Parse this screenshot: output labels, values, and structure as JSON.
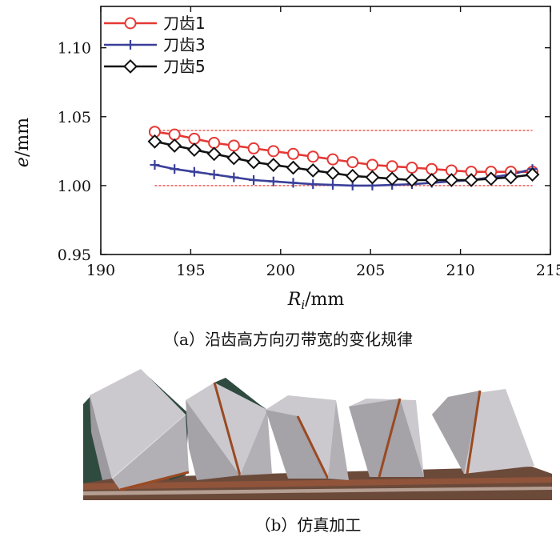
{
  "chart_data": {
    "type": "line",
    "title": "",
    "xlabel_main": "R",
    "xlabel_sub": "i",
    "xlabel_unit": "/mm",
    "ylabel_main": "e",
    "ylabel_unit": "/mm",
    "xlim": [
      190,
      215
    ],
    "ylim": [
      0.95,
      1.13
    ],
    "xticks": [
      "190",
      "195",
      "200",
      "205",
      "210",
      "215"
    ],
    "yticks": [
      "0.95",
      "1.00",
      "1.05",
      "1.10"
    ],
    "xtick_values": [
      190,
      195,
      200,
      205,
      210,
      215
    ],
    "ytick_values": [
      0.95,
      1.0,
      1.05,
      1.1
    ],
    "legend_position": "top-left",
    "reference_lines": [
      {
        "y": 1.04,
        "x": [
          193,
          214
        ],
        "color": "#e53935"
      },
      {
        "y": 1.0,
        "x": [
          193,
          214
        ],
        "color": "#e53935"
      }
    ],
    "series": [
      {
        "name": "刀齿1",
        "color": "#e53935",
        "marker": "circle",
        "x": [
          193.0,
          194.1,
          195.2,
          196.3,
          197.4,
          198.5,
          199.6,
          200.7,
          201.8,
          202.9,
          204.0,
          205.1,
          206.2,
          207.3,
          208.4,
          209.5,
          210.6,
          211.7,
          212.8,
          214.0
        ],
        "y": [
          1.039,
          1.037,
          1.034,
          1.031,
          1.029,
          1.027,
          1.025,
          1.023,
          1.021,
          1.019,
          1.017,
          1.015,
          1.014,
          1.013,
          1.012,
          1.011,
          1.01,
          1.01,
          1.01,
          1.01
        ]
      },
      {
        "name": "刀齿3",
        "color": "#3a3f9a",
        "marker": "plus",
        "x": [
          193.0,
          194.1,
          195.2,
          196.3,
          197.4,
          198.5,
          199.6,
          200.7,
          201.8,
          202.9,
          204.0,
          205.1,
          206.2,
          207.3,
          208.4,
          209.5,
          210.6,
          211.7,
          212.8,
          214.0
        ],
        "y": [
          1.015,
          1.012,
          1.01,
          1.008,
          1.006,
          1.004,
          1.003,
          1.002,
          1.001,
          1.0005,
          1.0,
          1.0,
          1.0005,
          1.001,
          1.002,
          1.003,
          1.004,
          1.006,
          1.008,
          1.012
        ]
      },
      {
        "name": "刀齿5",
        "color": "#111111",
        "marker": "diamond",
        "x": [
          193.0,
          194.1,
          195.2,
          196.3,
          197.4,
          198.5,
          199.6,
          200.7,
          201.8,
          202.9,
          204.0,
          205.1,
          206.2,
          207.3,
          208.4,
          209.5,
          210.6,
          211.7,
          212.8,
          214.0
        ],
        "y": [
          1.032,
          1.029,
          1.026,
          1.023,
          1.02,
          1.017,
          1.015,
          1.013,
          1.011,
          1.009,
          1.007,
          1.006,
          1.005,
          1.004,
          1.004,
          1.004,
          1.004,
          1.005,
          1.006,
          1.008
        ]
      }
    ]
  },
  "captions": {
    "a": "（a）沿齿高方向刃带宽的变化规律",
    "b": "（b）仿真加工"
  },
  "render": {
    "colors": {
      "axis": "#111111",
      "tooth_face": "#c9c7cc",
      "tooth_shade": "#8e8b90",
      "edge_copper": "#9a4a22",
      "body_green": "#2f4a3f",
      "base": "#6b4a3a"
    }
  }
}
